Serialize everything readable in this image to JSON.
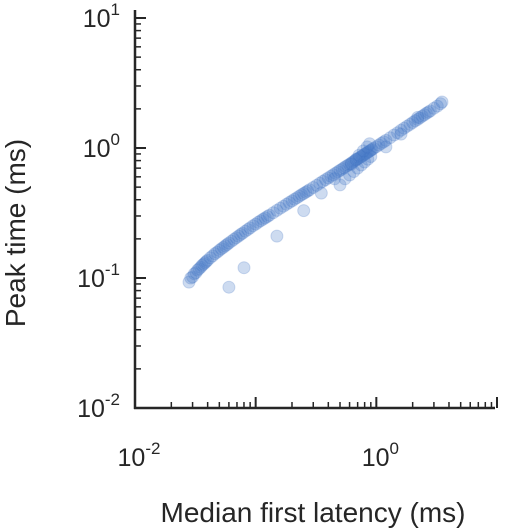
{
  "chart_data": {
    "type": "scatter",
    "title": "",
    "xlabel": "Median first latency (ms)",
    "ylabel": "Peak time (ms)",
    "xscale": "log",
    "yscale": "log",
    "xlim": [
      0.01,
      10
    ],
    "ylim": [
      0.01,
      10
    ],
    "grid": false,
    "marker_color": "#4a7cc9",
    "x_ticks": [
      {
        "value": 0.01,
        "base": "10",
        "exp": "-2"
      },
      {
        "value": 1,
        "base": "10",
        "exp": "0"
      }
    ],
    "y_ticks": [
      {
        "value": 0.01,
        "base": "10",
        "exp": "-2"
      },
      {
        "value": 0.1,
        "base": "10",
        "exp": "-1"
      },
      {
        "value": 1,
        "base": "10",
        "exp": "0"
      },
      {
        "value": 10,
        "base": "10",
        "exp": "1"
      }
    ],
    "series": [
      {
        "x": [
          0.028,
          0.029,
          0.03,
          0.031,
          0.032,
          0.033,
          0.034,
          0.035,
          0.036,
          0.037,
          0.038,
          0.039,
          0.04,
          0.042,
          0.044,
          0.046,
          0.048,
          0.05,
          0.052,
          0.054,
          0.056,
          0.058,
          0.06,
          0.063,
          0.066,
          0.069,
          0.072,
          0.075,
          0.078,
          0.082,
          0.086,
          0.09,
          0.095,
          0.1,
          0.105,
          0.11,
          0.115,
          0.12,
          0.125,
          0.13,
          0.14,
          0.15,
          0.16,
          0.17,
          0.18,
          0.19,
          0.2,
          0.21,
          0.22,
          0.23,
          0.24,
          0.25,
          0.26,
          0.27,
          0.28,
          0.3,
          0.32,
          0.34,
          0.36,
          0.38,
          0.4,
          0.42,
          0.44,
          0.46,
          0.48,
          0.5,
          0.52,
          0.54,
          0.56,
          0.58,
          0.6,
          0.62,
          0.64,
          0.66,
          0.68,
          0.7,
          0.72,
          0.74,
          0.76,
          0.78,
          0.8,
          0.82,
          0.84,
          0.86,
          0.88,
          0.9,
          0.92,
          0.95,
          1.0,
          1.05,
          1.1,
          1.15,
          1.2,
          1.3,
          1.4,
          1.5,
          1.6,
          1.7,
          1.8,
          1.9,
          2.0,
          2.1,
          2.2,
          2.3,
          2.4,
          2.5,
          2.6,
          2.7,
          2.8,
          3.0,
          3.2,
          3.4,
          3.5,
          0.5,
          0.55,
          0.6,
          0.65,
          0.7,
          0.75,
          0.8,
          0.85,
          0.9,
          0.62,
          0.68,
          0.72,
          0.78,
          0.84,
          0.88,
          0.45,
          0.35,
          0.25,
          0.15,
          0.08,
          0.06,
          1.2,
          1.6,
          2.2
        ],
        "y": [
          0.093,
          0.1,
          0.102,
          0.108,
          0.11,
          0.115,
          0.118,
          0.121,
          0.125,
          0.128,
          0.131,
          0.134,
          0.137,
          0.143,
          0.148,
          0.154,
          0.158,
          0.163,
          0.168,
          0.172,
          0.177,
          0.181,
          0.186,
          0.192,
          0.198,
          0.204,
          0.21,
          0.216,
          0.221,
          0.229,
          0.236,
          0.243,
          0.252,
          0.26,
          0.268,
          0.276,
          0.283,
          0.29,
          0.297,
          0.304,
          0.318,
          0.331,
          0.344,
          0.357,
          0.369,
          0.381,
          0.392,
          0.404,
          0.415,
          0.426,
          0.437,
          0.447,
          0.457,
          0.467,
          0.477,
          0.497,
          0.516,
          0.535,
          0.553,
          0.571,
          0.589,
          0.606,
          0.623,
          0.64,
          0.656,
          0.672,
          0.688,
          0.704,
          0.72,
          0.735,
          0.75,
          0.765,
          0.78,
          0.795,
          0.809,
          0.824,
          0.838,
          0.852,
          0.866,
          0.88,
          0.894,
          0.907,
          0.921,
          0.934,
          0.947,
          0.96,
          0.973,
          0.993,
          1.024,
          1.055,
          1.085,
          1.115,
          1.144,
          1.2,
          1.26,
          1.31,
          1.37,
          1.42,
          1.47,
          1.52,
          1.57,
          1.62,
          1.66,
          1.71,
          1.76,
          1.8,
          1.85,
          1.89,
          1.93,
          2.02,
          2.1,
          2.19,
          2.26,
          0.52,
          0.58,
          0.62,
          0.66,
          0.7,
          0.74,
          0.78,
          0.82,
          0.86,
          0.75,
          0.82,
          0.88,
          0.95,
          1.02,
          1.08,
          0.58,
          0.45,
          0.33,
          0.21,
          0.12,
          0.085,
          1.02,
          1.28,
          1.72
        ]
      }
    ]
  }
}
